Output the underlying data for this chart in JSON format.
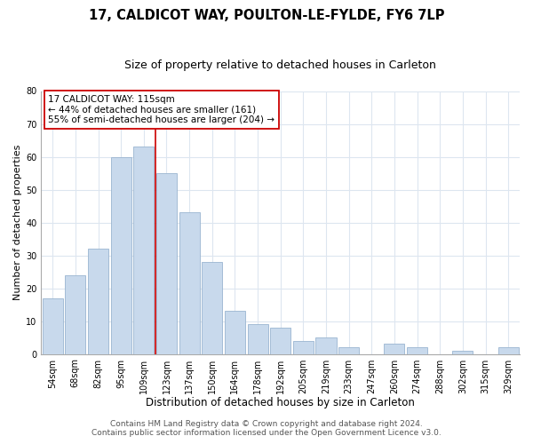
{
  "title": "17, CALDICOT WAY, POULTON-LE-FYLDE, FY6 7LP",
  "subtitle": "Size of property relative to detached houses in Carleton",
  "xlabel": "Distribution of detached houses by size in Carleton",
  "ylabel": "Number of detached properties",
  "bar_labels": [
    "54sqm",
    "68sqm",
    "82sqm",
    "95sqm",
    "109sqm",
    "123sqm",
    "137sqm",
    "150sqm",
    "164sqm",
    "178sqm",
    "192sqm",
    "205sqm",
    "219sqm",
    "233sqm",
    "247sqm",
    "260sqm",
    "274sqm",
    "288sqm",
    "302sqm",
    "315sqm",
    "329sqm"
  ],
  "bar_values": [
    17,
    24,
    32,
    60,
    63,
    55,
    43,
    28,
    13,
    9,
    8,
    4,
    5,
    2,
    0,
    3,
    2,
    0,
    1,
    0,
    2
  ],
  "bar_color": "#c8d9ec",
  "bar_edge_color": "#9ab5d0",
  "vline_x_index": 4.5,
  "vline_color": "#cc0000",
  "ylim": [
    0,
    80
  ],
  "yticks": [
    0,
    10,
    20,
    30,
    40,
    50,
    60,
    70,
    80
  ],
  "annotation_title": "17 CALDICOT WAY: 115sqm",
  "annotation_line1": "← 44% of detached houses are smaller (161)",
  "annotation_line2": "55% of semi-detached houses are larger (204) →",
  "annotation_box_color": "#ffffff",
  "annotation_box_edge": "#cc0000",
  "footer1": "Contains HM Land Registry data © Crown copyright and database right 2024.",
  "footer2": "Contains public sector information licensed under the Open Government Licence v3.0.",
  "bg_color": "#ffffff",
  "plot_bg_color": "#ffffff",
  "title_fontsize": 10.5,
  "subtitle_fontsize": 9,
  "xlabel_fontsize": 8.5,
  "ylabel_fontsize": 8,
  "tick_fontsize": 7,
  "annotation_fontsize": 7.5,
  "footer_fontsize": 6.5
}
